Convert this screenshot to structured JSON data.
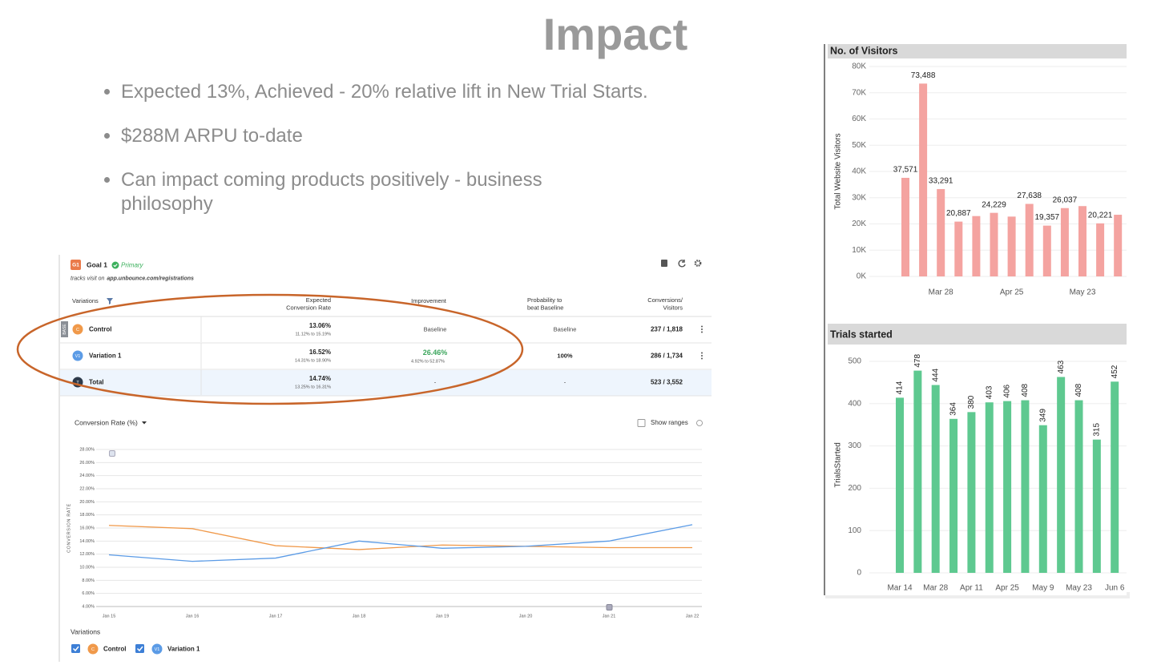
{
  "title": "Impact",
  "bullets": [
    "Expected 13%, Achieved - 20% relative lift in New Trial Starts.",
    "$288M ARPU to-date",
    "Can impact coming products positively - business philosophy"
  ],
  "experiment": {
    "goal": {
      "badge": "G1",
      "name": "Goal 1",
      "status": "Primary",
      "tracks": "tracks visit on",
      "url": "app.unbounce.com/registrations"
    },
    "table": {
      "headers": [
        [
          "Variations"
        ],
        [
          "Expected",
          "Conversion Rate"
        ],
        [
          "Improvement"
        ],
        [
          "Probability to",
          "beat Baseline"
        ],
        [
          "Conversions/",
          "Visitors"
        ]
      ],
      "rows": [
        {
          "badge": "C",
          "base": "BASE",
          "name": "Control",
          "rate": "13.06%",
          "range": "11.12% to 15.19%",
          "improvement": "Baseline",
          "probability": "Baseline",
          "conversions": "237 / 1,818"
        },
        {
          "badge": "V1",
          "name": "Variation 1",
          "rate": "16.52%",
          "range": "14.31% to 18.90%",
          "improvement": "26.46%",
          "improvement_range": "4.92% to 52.87%",
          "probability": "100%",
          "conversions": "286 / 1,734"
        },
        {
          "badge": "T",
          "name": "Total",
          "rate": "14.74%",
          "range": "13.25% to 16.31%",
          "improvement": "-",
          "probability": "-",
          "conversions": "523 / 3,552"
        }
      ]
    },
    "show_ranges": "Show ranges",
    "legend_title": "Variations"
  },
  "chart_data": [
    {
      "type": "line",
      "title": "Conversion Rate (%)",
      "y_label": "CONVERSION RATE",
      "categories": [
        "Jan 15",
        "Jan 16",
        "Jan 17",
        "Jan 18",
        "Jan 19",
        "Jan 20",
        "Jan 21",
        "Jan 22"
      ],
      "series": [
        {
          "name": "Control",
          "badge": "C",
          "color": "#f0994a",
          "values": [
            16.4,
            15.9,
            13.3,
            12.7,
            13.4,
            13.2,
            13.0,
            13.0
          ]
        },
        {
          "name": "Variation 1",
          "badge": "V1",
          "color": "#5b9be6",
          "values": [
            11.9,
            10.9,
            11.4,
            14.0,
            12.9,
            13.2,
            14.0,
            16.5
          ]
        }
      ],
      "ylim": [
        4,
        28
      ],
      "yticks": [
        {
          "value": 4,
          "label": "4.00%"
        },
        {
          "value": 6,
          "label": "6.00%"
        },
        {
          "value": 8,
          "label": "8.00%"
        },
        {
          "value": 10,
          "label": "10.00%"
        },
        {
          "value": 12,
          "label": "12.00%"
        },
        {
          "value": 14,
          "label": "14.00%"
        },
        {
          "value": 16,
          "label": "16.00%"
        },
        {
          "value": 18,
          "label": "18.00%"
        },
        {
          "value": 20,
          "label": "20.00%"
        },
        {
          "value": 22,
          "label": "22.00%"
        },
        {
          "value": 24,
          "label": "24.00%"
        },
        {
          "value": 26,
          "label": "26.00%"
        },
        {
          "value": 28,
          "label": "28.00%"
        }
      ],
      "grid": true
    },
    {
      "type": "bar",
      "title": "No. of Visitors",
      "y_label": "Total Website Visitors",
      "categories": [
        null,
        null,
        "Mar 28",
        null,
        null,
        null,
        "Apr 25",
        null,
        null,
        null,
        "May 23",
        null,
        null
      ],
      "values": [
        37571,
        73488,
        33291,
        20887,
        23000,
        24229,
        22800,
        27638,
        19357,
        26037,
        26800,
        20221,
        23500
      ],
      "value_labels": [
        "37,571",
        "73,488",
        "33,291",
        "20,887",
        null,
        "24,229",
        null,
        "27,638",
        "19,357",
        "26,037",
        null,
        "20,221",
        null
      ],
      "color": "#f4a3a0",
      "ylim": [
        0,
        80000
      ],
      "yticks": [
        {
          "value": 0,
          "label": "0K"
        },
        {
          "value": 10000,
          "label": "10K"
        },
        {
          "value": 20000,
          "label": "20K"
        },
        {
          "value": 30000,
          "label": "30K"
        },
        {
          "value": 40000,
          "label": "40K"
        },
        {
          "value": 50000,
          "label": "50K"
        },
        {
          "value": 60000,
          "label": "60K"
        },
        {
          "value": 70000,
          "label": "70K"
        },
        {
          "value": 80000,
          "label": "80K"
        }
      ],
      "grid": true
    },
    {
      "type": "bar",
      "title": "Trials started",
      "y_label": "TrialsStarted",
      "categories": [
        "Mar 14",
        null,
        "Mar 28",
        null,
        "Apr 11",
        null,
        "Apr 25",
        null,
        "May 9",
        null,
        "May 23",
        null,
        "Jun 6"
      ],
      "values": [
        414,
        478,
        444,
        364,
        380,
        403,
        406,
        408,
        349,
        463,
        408,
        315,
        452
      ],
      "color": "#5ec990",
      "ylim": [
        0,
        510
      ],
      "yticks": [
        0,
        100,
        200,
        300,
        400,
        500
      ],
      "grid": true
    }
  ]
}
